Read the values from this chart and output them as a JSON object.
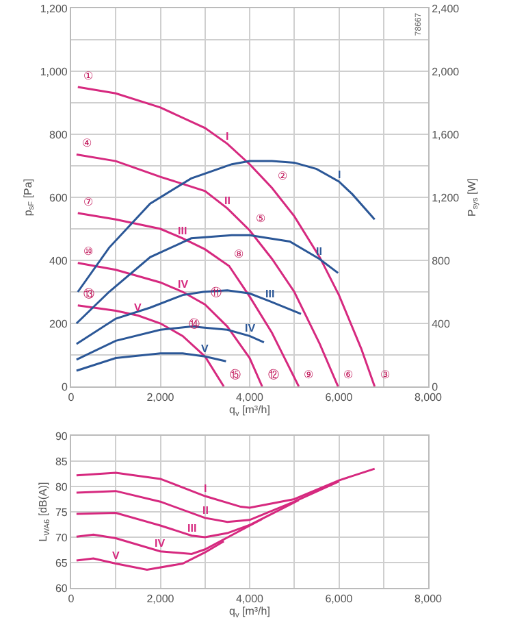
{
  "chart_data": [
    {
      "type": "line",
      "xlabel": "q$_{v}$ [m³/h]",
      "ylabel": "p$_{sF}$ [Pa]",
      "y2label": "P$_{sys}$ [W]",
      "xlim": [
        0,
        8000
      ],
      "xticks": [
        0,
        {
          "value": 1000,
          "label": null
        },
        {
          "value": 2000,
          "label": "2,000"
        },
        {
          "value": 3000,
          "label": null
        },
        {
          "value": 4000,
          "label": "4,000"
        },
        {
          "value": 5000,
          "label": null
        },
        {
          "value": 6000,
          "label": "6,000"
        },
        {
          "value": 7000,
          "label": null
        },
        {
          "value": 8000,
          "label": "8,000"
        }
      ],
      "ylim": [
        0,
        1200
      ],
      "yticks": [
        0,
        {
          "value": 100,
          "label": null
        },
        200,
        {
          "value": 300,
          "label": null
        },
        400,
        {
          "value": 500,
          "label": null
        },
        600,
        {
          "value": 700,
          "label": null
        },
        800,
        {
          "value": 900,
          "label": null
        },
        {
          "value": 1000,
          "label": "1,000"
        },
        {
          "value": 1100,
          "label": null
        },
        {
          "value": 1200,
          "label": "1,200"
        }
      ],
      "y2lim": [
        0,
        2400
      ],
      "y2ticks": [
        0,
        400,
        800,
        {
          "value": 1200,
          "label": "1,200"
        },
        {
          "value": 1600,
          "label": "1,600"
        },
        {
          "value": 2000,
          "label": "2,000"
        },
        {
          "value": 2400,
          "label": "2,400"
        }
      ],
      "grid": true,
      "legend": false,
      "marker": "none",
      "line_style": "solid",
      "series": [
        {
          "name": "I",
          "color": "#d6297f",
          "x": [
            150,
            1000,
            2000,
            3000,
            3500,
            4000,
            4500,
            5000,
            5570,
            6000,
            6500,
            6800
          ],
          "values": [
            950,
            930,
            885,
            820,
            770,
            705,
            630,
            540,
            410,
            290,
            120,
            0
          ]
        },
        {
          "name": "II",
          "color": "#d6297f",
          "x": [
            120,
            1000,
            2000,
            3000,
            3500,
            4000,
            4500,
            5000,
            5570,
            5980
          ],
          "values": [
            736,
            715,
            665,
            620,
            565,
            495,
            405,
            300,
            135,
            0
          ]
        },
        {
          "name": "III",
          "color": "#d6297f",
          "x": [
            150,
            1000,
            2000,
            2500,
            3000,
            3540,
            4000,
            4500,
            5100
          ],
          "values": [
            550,
            530,
            500,
            470,
            435,
            382,
            285,
            170,
            0
          ]
        },
        {
          "name": "IV",
          "color": "#d6297f",
          "x": [
            150,
            1000,
            2000,
            2500,
            3000,
            3500,
            4000,
            4280
          ],
          "values": [
            392,
            370,
            330,
            300,
            260,
            190,
            90,
            0
          ]
        },
        {
          "name": "V",
          "color": "#d6297f",
          "x": [
            150,
            1000,
            1500,
            2000,
            2500,
            3000,
            3420
          ],
          "values": [
            257,
            240,
            225,
            200,
            160,
            95,
            0
          ]
        },
        {
          "name": "I",
          "color": "#2b5797",
          "axis": "y2",
          "x": [
            150,
            850,
            1770,
            2690,
            3600,
            4000,
            4500,
            5000,
            5500,
            6000,
            6300,
            6800
          ],
          "values": [
            600,
            880,
            1160,
            1320,
            1410,
            1430,
            1430,
            1420,
            1380,
            1300,
            1220,
            1060
          ]
        },
        {
          "name": "II",
          "color": "#2b5797",
          "axis": "y2",
          "x": [
            120,
            850,
            1770,
            2690,
            3600,
            4000,
            4900,
            5560,
            5980
          ],
          "values": [
            400,
            600,
            820,
            940,
            960,
            960,
            920,
            810,
            720
          ]
        },
        {
          "name": "III",
          "color": "#2b5797",
          "axis": "y2",
          "x": [
            120,
            1000,
            1770,
            2500,
            2960,
            3500,
            4000,
            4460,
            5150
          ],
          "values": [
            270,
            430,
            500,
            580,
            600,
            610,
            590,
            540,
            460
          ]
        },
        {
          "name": "IV",
          "color": "#2b5797",
          "axis": "y2",
          "x": [
            120,
            1000,
            2000,
            2700,
            3500,
            4000,
            4320
          ],
          "values": [
            170,
            290,
            360,
            380,
            360,
            320,
            280
          ]
        },
        {
          "name": "V",
          "color": "#2b5797",
          "axis": "y2",
          "x": [
            120,
            1000,
            2000,
            2500,
            3000,
            3470
          ],
          "values": [
            100,
            180,
            210,
            210,
            190,
            160
          ]
        }
      ],
      "annotations": [
        "78667",
        {
          "text": "①",
          "x": 150,
          "y": 950
        },
        {
          "text": "④",
          "x": 120,
          "y": 736
        },
        {
          "text": "⑦",
          "x": 150,
          "y": 550
        },
        {
          "text": "⑩",
          "x": 150,
          "y": 392
        },
        {
          "text": "⑬",
          "x": 150,
          "y": 257
        },
        {
          "text": "②",
          "x": 4500,
          "y": 630
        },
        {
          "text": "⑤",
          "x": 4000,
          "y": 495
        },
        {
          "text": "⑧",
          "x": 3540,
          "y": 382
        },
        {
          "text": "⑪",
          "x": 3000,
          "y": 260
        },
        {
          "text": "⑭",
          "x": 2500,
          "y": 160
        },
        {
          "text": "③",
          "x": 6800,
          "y": 0
        },
        {
          "text": "⑥",
          "x": 5980,
          "y": 0
        },
        {
          "text": "⑨",
          "x": 5100,
          "y": 0
        },
        {
          "text": "⑫",
          "x": 4280,
          "y": 0
        },
        {
          "text": "⑮",
          "x": 3420,
          "y": 0
        }
      ]
    },
    {
      "type": "line",
      "xlabel": "q$_{v}$ [m³/h]",
      "ylabel": "L$_{WA6}$ [dB(A)]",
      "xlim": [
        0,
        8000
      ],
      "xticks": [
        0,
        {
          "value": 1000,
          "label": null
        },
        {
          "value": 2000,
          "label": "2,000"
        },
        {
          "value": 3000,
          "label": null
        },
        {
          "value": 4000,
          "label": "4,000"
        },
        {
          "value": 5000,
          "label": null
        },
        {
          "value": 6000,
          "label": "6,000"
        },
        {
          "value": 7000,
          "label": null
        },
        {
          "value": 8000,
          "label": "8,000"
        }
      ],
      "ylim": [
        60,
        90
      ],
      "yticks": [
        60,
        65,
        70,
        75,
        80,
        85,
        90
      ],
      "grid": true,
      "legend": false,
      "marker": "none",
      "line_style": "solid",
      "series": [
        {
          "name": "I",
          "color": "#d6297f",
          "x": [
            120,
            1000,
            2000,
            3000,
            3800,
            4000,
            5000,
            6000,
            6800
          ],
          "values": [
            82.2,
            82.7,
            81.5,
            78.1,
            76.0,
            75.8,
            77.5,
            81.2,
            83.5
          ]
        },
        {
          "name": "II",
          "color": "#d6297f",
          "x": [
            120,
            1000,
            2000,
            3000,
            3500,
            4000,
            5000,
            6000
          ],
          "values": [
            78.8,
            79.1,
            77.0,
            73.8,
            73.0,
            73.4,
            77.0,
            81.0
          ]
        },
        {
          "name": "III",
          "color": "#d6297f",
          "x": [
            120,
            1000,
            2000,
            2700,
            3000,
            3500,
            4000,
            4500,
            5100
          ],
          "values": [
            74.6,
            74.8,
            72.3,
            70.3,
            70.0,
            70.8,
            72.4,
            74.6,
            77.3
          ]
        },
        {
          "name": "IV",
          "color": "#d6297f",
          "x": [
            120,
            500,
            1000,
            2000,
            2700,
            3000,
            3600,
            4280
          ],
          "values": [
            70.1,
            70.5,
            69.8,
            67.2,
            66.7,
            67.6,
            70.4,
            73.6
          ]
        },
        {
          "name": "V",
          "color": "#d6297f",
          "x": [
            120,
            500,
            1000,
            1700,
            2500,
            3000,
            3420
          ],
          "values": [
            65.4,
            65.8,
            64.8,
            63.6,
            64.8,
            67.0,
            69.2
          ]
        }
      ]
    }
  ]
}
